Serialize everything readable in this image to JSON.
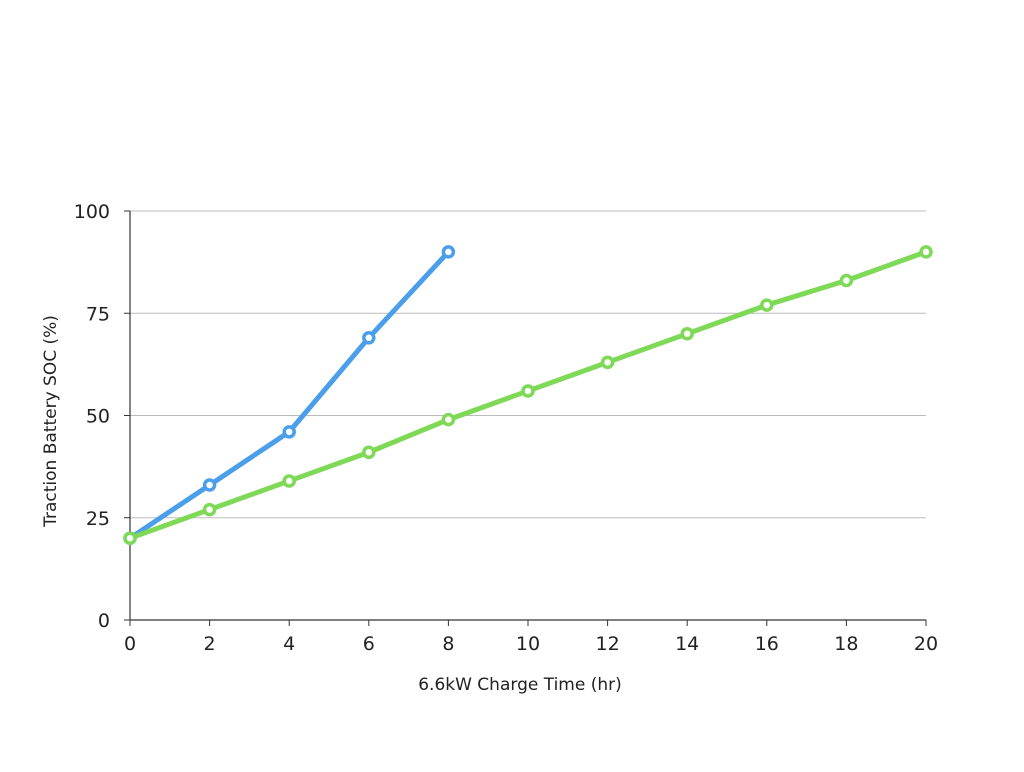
{
  "chart_data": {
    "type": "line",
    "title": "",
    "xlabel": "6.6kW Charge  Time    (hr)",
    "ylabel": "Traction Battery SOC (%)",
    "xlim": [
      0,
      20
    ],
    "ylim": [
      0,
      100
    ],
    "x_ticks": [
      0,
      2,
      4,
      6,
      8,
      10,
      12,
      14,
      16,
      18,
      20
    ],
    "y_ticks": [
      0,
      25,
      50,
      75,
      100
    ],
    "grid": true,
    "legend": false,
    "series": [
      {
        "color": "#4a9eea",
        "x": [
          0,
          2,
          4,
          6,
          8
        ],
        "y": [
          20,
          33,
          46,
          69,
          90
        ]
      },
      {
        "color": "#7ed957",
        "x": [
          0,
          2,
          4,
          6,
          8,
          10,
          12,
          14,
          16,
          18,
          20
        ],
        "y": [
          20,
          27,
          34,
          41,
          49,
          56,
          63,
          70,
          77,
          83,
          90
        ]
      }
    ],
    "gridline_color": "#bbbbbb",
    "axis_color": "#333333"
  }
}
